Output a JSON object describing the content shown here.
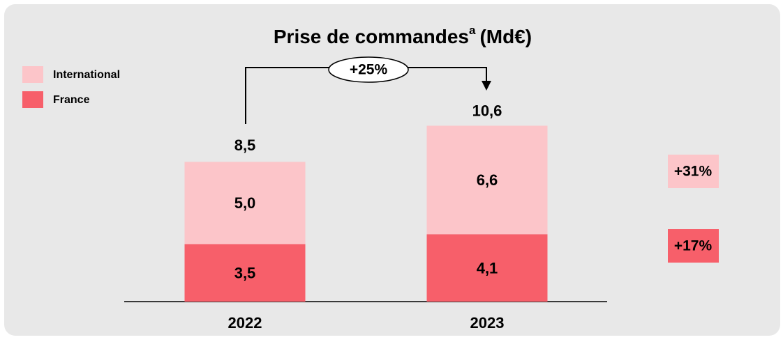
{
  "chart_data": {
    "type": "stacked_bar",
    "title": "Prise de commandes",
    "title_note": "a",
    "title_unit": "(Md€)",
    "categories": [
      "2022",
      "2023"
    ],
    "series": [
      {
        "name": "France",
        "color": "#f75f6a",
        "values": [
          3.5,
          4.1
        ],
        "value_labels": [
          "3,5",
          "4,1"
        ],
        "change_label": "+17%"
      },
      {
        "name": "International",
        "color": "#fcc5c9",
        "values": [
          5.0,
          6.6
        ],
        "value_labels": [
          "5,0",
          "6,6"
        ],
        "change_label": "+31%"
      }
    ],
    "totals": [
      8.5,
      10.6
    ],
    "total_labels": [
      "8,5",
      "10,6"
    ],
    "total_change_label": "+25%"
  }
}
